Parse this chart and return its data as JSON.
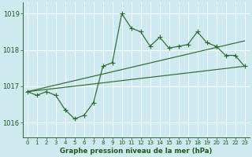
{
  "background_color": "#ceeaf0",
  "grid_color": "#b0d8e0",
  "line_color": "#2d6a2d",
  "text_color": "#1a5c1a",
  "title": "Graphe pression niveau de la mer (hPa)",
  "xlim": [
    -0.5,
    23.5
  ],
  "ylim": [
    1015.6,
    1019.3
  ],
  "yticks": [
    1016,
    1017,
    1018,
    1019
  ],
  "xtick_labels": [
    "0",
    "1",
    "2",
    "3",
    "4",
    "5",
    "6",
    "7",
    "8",
    "9",
    "10",
    "11",
    "12",
    "13",
    "14",
    "15",
    "16",
    "17",
    "18",
    "19",
    "20",
    "21",
    "22",
    "23"
  ],
  "xticks": [
    0,
    1,
    2,
    3,
    4,
    5,
    6,
    7,
    8,
    9,
    10,
    11,
    12,
    13,
    14,
    15,
    16,
    17,
    18,
    19,
    20,
    21,
    22,
    23
  ],
  "series1_x": [
    0,
    1,
    2,
    3,
    4,
    5,
    6,
    7,
    8,
    9,
    10,
    11,
    12,
    13,
    14,
    15,
    16,
    17,
    18,
    19,
    20,
    21,
    22,
    23
  ],
  "series1_y": [
    1016.85,
    1016.75,
    1016.85,
    1016.75,
    1016.35,
    1016.1,
    1016.2,
    1016.55,
    1017.55,
    1017.65,
    1019.0,
    1018.6,
    1018.5,
    1018.1,
    1018.35,
    1018.05,
    1018.1,
    1018.15,
    1018.5,
    1018.2,
    1018.1,
    1017.85,
    1017.85,
    1017.55
  ],
  "series2_x": [
    0,
    23
  ],
  "series2_y": [
    1016.85,
    1017.55
  ],
  "series3_x": [
    0,
    23
  ],
  "series3_y": [
    1016.85,
    1018.25
  ],
  "markersize": 3.0,
  "linewidth": 0.85
}
